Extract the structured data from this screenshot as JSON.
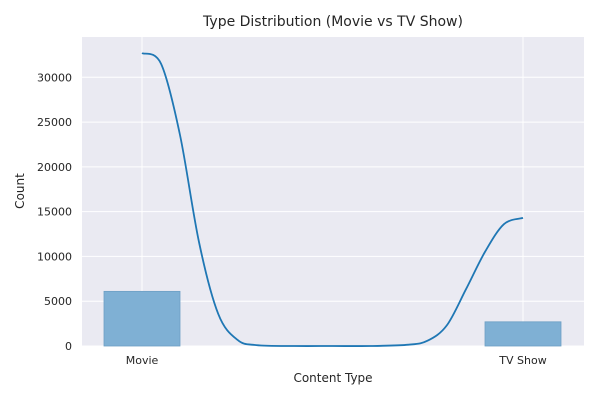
{
  "chart_data": {
    "type": "bar",
    "title": "Type Distribution (Movie vs TV Show)",
    "xlabel": "Content Type",
    "ylabel": "Count",
    "categories": [
      "Movie",
      "TV Show"
    ],
    "values": [
      6100,
      2700
    ],
    "ylim": [
      0,
      34500
    ],
    "yticks": [
      0,
      5000,
      10000,
      15000,
      20000,
      25000,
      30000
    ],
    "grid": true,
    "kde_curve": {
      "x": [
        0.0,
        0.05,
        0.1,
        0.15,
        0.2,
        0.25,
        0.3,
        0.4,
        0.5,
        0.6,
        0.7,
        0.75,
        0.8,
        0.85,
        0.9,
        0.95,
        1.0
      ],
      "y": [
        32700,
        31500,
        23500,
        11500,
        3600,
        700,
        100,
        0,
        0,
        0,
        150,
        600,
        2300,
        6300,
        10500,
        13600,
        14300
      ]
    },
    "colors": {
      "background": "#eaeaf2",
      "grid": "#ffffff",
      "bar_fill": "#7fb0d4",
      "bar_edge": "#6d9fc4",
      "line": "#1f77b4"
    }
  }
}
